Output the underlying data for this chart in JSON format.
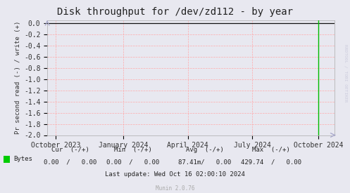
{
  "title": "Disk throughput for /dev/zd112 - by year",
  "ylabel": "Pr second read (-) / write (+)",
  "background_color": "#e8e8f0",
  "plot_bg_color": "#e8e8f0",
  "grid_color_h": "#ffaaaa",
  "grid_color_v": "#ffaaaa",
  "line_color": "#000000",
  "green_line_color": "#00bb00",
  "ylim": [
    -2.0,
    0.05
  ],
  "yticks": [
    0.0,
    -0.2,
    -0.4,
    -0.6,
    -0.8,
    -1.0,
    -1.2,
    -1.4,
    -1.6,
    -1.8,
    -2.0
  ],
  "xtick_labels": [
    "October 2023",
    "January 2024",
    "April 2024",
    "July 2024",
    "October 2024"
  ],
  "xtick_positions": [
    0.03,
    0.265,
    0.49,
    0.715,
    0.945
  ],
  "green_line_x": 0.945,
  "watermark": "RRDTOOL / TOBI OETIKER",
  "legend_label": "Bytes",
  "legend_color": "#00cc00",
  "cur_label": "Cur  (-/+)",
  "min_label": "Min  (-/+)",
  "avg_label": "Avg  (-/+)",
  "max_label": "Max  (-/+)",
  "cur_val": "0.00  /   0.00",
  "min_val": "0.00  /   0.00",
  "avg_val": "87.41m/   0.00",
  "max_val": "429.74  /   0.00",
  "last_update": "Last update: Wed Oct 16 02:00:10 2024",
  "munin_label": "Munin 2.0.76",
  "title_fontsize": 10,
  "tick_fontsize": 7,
  "small_fontsize": 6.5
}
